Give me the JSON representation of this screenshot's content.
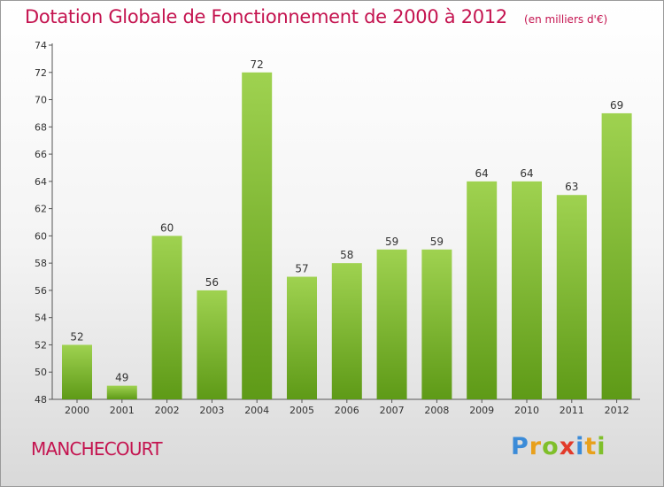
{
  "chart_data": {
    "type": "bar",
    "title": "Dotation Globale de Fonctionnement de 2000 à 2012",
    "unit_note": "(en milliers d'€)",
    "categories": [
      "2000",
      "2001",
      "2002",
      "2003",
      "2004",
      "2005",
      "2006",
      "2007",
      "2008",
      "2009",
      "2010",
      "2011",
      "2012"
    ],
    "values": [
      52,
      49,
      60,
      56,
      72,
      57,
      58,
      59,
      59,
      64,
      64,
      63,
      69
    ],
    "ylim": [
      48,
      74
    ],
    "yticks": [
      48,
      50,
      52,
      54,
      56,
      58,
      60,
      62,
      64,
      66,
      68,
      70,
      72,
      74
    ],
    "xlabel": "",
    "ylabel": "",
    "grid": false,
    "bar_color_top": "#9fd250",
    "bar_color_bottom": "#5e9a17"
  },
  "commune": "MANCHECOURT",
  "logo": {
    "letters": [
      {
        "char": "P",
        "color": "#3b8bd8"
      },
      {
        "char": "r",
        "color": "#e8a01c"
      },
      {
        "char": "o",
        "color": "#7fbf2a"
      },
      {
        "char": "x",
        "color": "#e23a2a"
      },
      {
        "char": "i",
        "color": "#3b8bd8"
      },
      {
        "char": "t",
        "color": "#e8a01c"
      },
      {
        "char": "i",
        "color": "#7fbf2a"
      }
    ]
  },
  "colors": {
    "accent": "#c4134f"
  }
}
